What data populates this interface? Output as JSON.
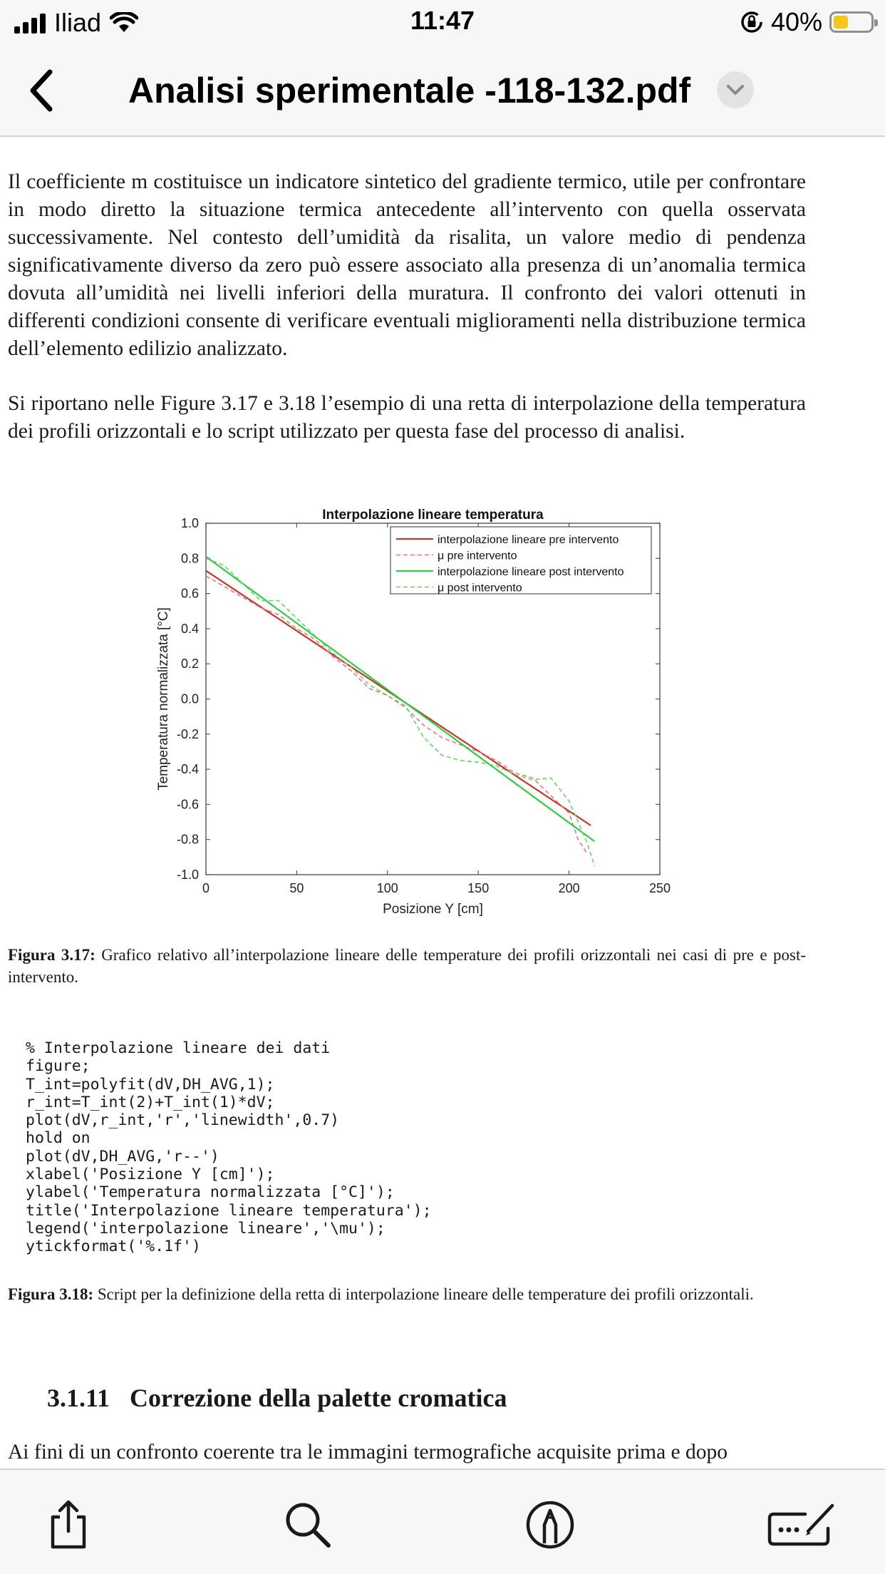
{
  "status_bar": {
    "carrier": "Iliad",
    "time": "11:47",
    "battery_percent": "40%",
    "battery_level": 0.4,
    "icons": [
      "cellular-signal-icon",
      "wifi-icon",
      "orientation-lock-icon",
      "battery-icon"
    ]
  },
  "nav": {
    "title": "Analisi sperimentale -118-132.pdf",
    "back_icon": "chevron-left-icon",
    "menu_icon": "chevron-down-icon"
  },
  "document": {
    "paragraph1": "Il coefficiente m costituisce un indicatore sintetico del gradiente termico, utile per confrontare in modo diretto la situazione termica antecedente all’intervento con quella osservata successivamente. Nel contesto dell’umidità da risalita, un valore medio di pendenza significativamente diverso da zero può essere associato alla presenza di un’anomalia termica dovuta all’umidità nei livelli inferiori della muratura. Il confronto dei valori ottenuti in differenti condizioni consente di verificare eventuali miglioramenti nella distribuzione termica dell’elemento edilizio analizzato.",
    "paragraph2": "Si riportano nelle Figure 3.17 e 3.18 l’esempio di una retta di interpolazione della temperatura dei profili orizzontali e lo script utilizzato per questa fase del processo di analisi.",
    "figure1_label": "Figura 3.17:",
    "figure1_text": "Grafico relativo all’interpolazione lineare delle temperature dei profili orizzontali nei casi di pre e post-intervento.",
    "code_lines": [
      "% Interpolazione lineare dei dati",
      "figure;",
      "T_int=polyfit(dV,DH_AVG,1);",
      "r_int=T_int(2)+T_int(1)*dV;",
      "plot(dV,r_int,'r','linewidth',0.7)",
      "hold on",
      "plot(dV,DH_AVG,'r--')",
      "xlabel('Posizione Y [cm]');",
      "ylabel('Temperatura normalizzata [°C]');",
      "title('Interpolazione lineare temperatura');",
      "legend('interpolazione lineare','\\mu');",
      "ytickformat('%.1f')"
    ],
    "figure2_label": "Figura 3.18:",
    "figure2_text": "Script per la definizione della retta di interpolazione lineare delle temperature dei profili orizzontali.",
    "section_number": "3.1.11",
    "section_title": "Correzione della palette cromatica",
    "paragraph3": "Ai fini di un confronto coerente tra le immagini termografiche acquisite prima e dopo"
  },
  "chart_data": {
    "type": "line",
    "title": "Interpolazione lineare temperatura",
    "xlabel": "Posizione Y [cm]",
    "ylabel": "Temperatura normalizzata [°C]",
    "xlim": [
      0,
      250
    ],
    "ylim": [
      -1.0,
      1.0
    ],
    "xticks": [
      "0",
      "50",
      "100",
      "150",
      "200",
      "250"
    ],
    "yticks": [
      "-1.0",
      "-0.8",
      "-0.6",
      "-0.4",
      "-0.2",
      "0.0",
      "0.2",
      "0.4",
      "0.6",
      "0.8",
      "1.0"
    ],
    "grid": false,
    "legend_position": "top-right",
    "series": [
      {
        "name": "interpolazione lineare pre intervento",
        "color": "#c0392b",
        "style": "solid",
        "x": [
          0,
          212
        ],
        "y": [
          0.73,
          -0.72
        ]
      },
      {
        "name": "μ pre intervento",
        "color": "#e07a80",
        "style": "dashed",
        "x": [
          0,
          10,
          20,
          30,
          40,
          50,
          60,
          70,
          80,
          90,
          100,
          110,
          120,
          130,
          140,
          150,
          160,
          170,
          180,
          190,
          200,
          205,
          210
        ],
        "y": [
          0.7,
          0.64,
          0.58,
          0.52,
          0.48,
          0.4,
          0.34,
          0.24,
          0.16,
          0.06,
          0.02,
          -0.05,
          -0.15,
          -0.22,
          -0.26,
          -0.3,
          -0.35,
          -0.42,
          -0.45,
          -0.55,
          -0.65,
          -0.8,
          -0.88
        ]
      },
      {
        "name": "interpolazione lineare post intervento",
        "color": "#2ecc40",
        "style": "solid",
        "x": [
          0,
          214
        ],
        "y": [
          0.81,
          -0.81
        ]
      },
      {
        "name": "μ post intervento",
        "color": "#62d462",
        "style": "dashed",
        "x": [
          0,
          10,
          20,
          30,
          40,
          50,
          60,
          70,
          80,
          90,
          100,
          110,
          120,
          130,
          140,
          150,
          160,
          170,
          180,
          190,
          200,
          205,
          210,
          214
        ],
        "y": [
          0.8,
          0.76,
          0.66,
          0.56,
          0.56,
          0.46,
          0.36,
          0.26,
          0.18,
          0.08,
          0.02,
          -0.04,
          -0.22,
          -0.32,
          -0.35,
          -0.36,
          -0.38,
          -0.43,
          -0.46,
          -0.45,
          -0.58,
          -0.7,
          -0.82,
          -0.95
        ]
      }
    ]
  },
  "toolbar": {
    "items": [
      {
        "name": "share-icon"
      },
      {
        "name": "search-icon"
      },
      {
        "name": "markup-icon"
      },
      {
        "name": "signature-icon"
      }
    ]
  }
}
